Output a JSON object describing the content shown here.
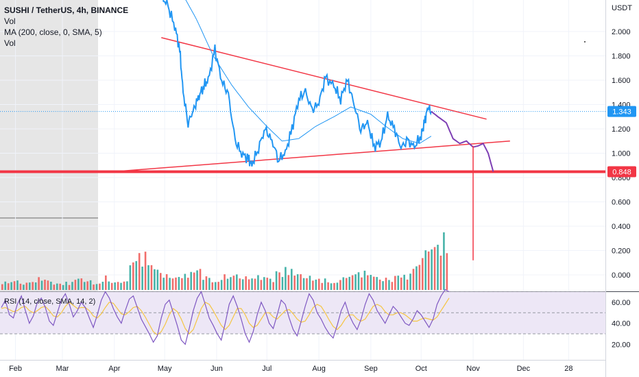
{
  "legend": {
    "symbol": "SUSHI / TetherUS, 4h, BINANCE",
    "vol1": "Vol",
    "ma": "MA (200, close, 0, SMA, 5)",
    "vol2": "Vol",
    "rsi": "RSI (14, close, SMA, 14, 2)"
  },
  "colors": {
    "price": "#2196f3",
    "ma": "#2196f3",
    "trendline": "#f23645",
    "support": "#f23645",
    "projection": "#7e3fb4",
    "rsi": "#7e57c2",
    "rsi_ma": "#f5c542",
    "rsi_band": "#ede7f6",
    "vol_up": "#26a69a",
    "vol_down": "#ef5350",
    "badge_blue": "#2196f3",
    "badge_red": "#f23645"
  },
  "chart_data": [
    {
      "type": "line",
      "title": "SUSHI / TetherUS, 4h, BINANCE",
      "unit": "USDT",
      "x_labels": [
        "Feb",
        "Mar",
        "Apr",
        "May",
        "Jun",
        "Jul",
        "Aug",
        "Sep",
        "Oct",
        "Nov",
        "Dec",
        "28"
      ],
      "y_ticks": [
        "2.000",
        "1.800",
        "1.600",
        "1.400",
        "1.200",
        "1.000",
        "0.800",
        "0.600",
        "0.400",
        "0.200",
        "0.000"
      ],
      "ylim": [
        -0.05,
        2.3
      ],
      "current_price": "1.343",
      "support_level": "0.848",
      "series": [
        {
          "x": [
            "2021-04-29",
            "2021-05-03",
            "2021-05-07",
            "2021-05-10",
            "2021-05-12",
            "2021-05-15",
            "2021-05-18",
            "2021-05-21",
            "2021-05-24",
            "2021-05-27",
            "2021-05-31",
            "2021-06-04",
            "2021-06-08",
            "2021-06-12",
            "2021-06-16",
            "2021-06-20",
            "2021-06-22",
            "2021-06-26",
            "2021-06-30",
            "2021-07-04",
            "2021-07-08",
            "2021-07-12",
            "2021-07-16",
            "2021-07-20",
            "2021-07-24",
            "2021-07-28",
            "2021-08-01",
            "2021-08-05",
            "2021-08-10",
            "2021-08-14",
            "2021-08-18",
            "2021-08-22",
            "2021-08-26",
            "2021-08-30",
            "2021-09-03",
            "2021-09-07",
            "2021-09-11",
            "2021-09-15",
            "2021-09-19",
            "2021-09-23",
            "2021-09-27",
            "2021-10-01",
            "2021-10-03",
            "2021-10-05",
            "2021-10-07"
          ],
          "y": [
            2.3,
            2.2,
            2.05,
            1.85,
            1.5,
            1.25,
            1.35,
            1.45,
            1.55,
            1.6,
            1.85,
            1.6,
            1.48,
            1.1,
            1.0,
            0.95,
            0.9,
            1.05,
            1.2,
            1.1,
            0.95,
            1.0,
            1.2,
            1.45,
            1.5,
            1.35,
            1.42,
            1.62,
            1.55,
            1.45,
            1.6,
            1.4,
            1.2,
            1.25,
            1.05,
            1.1,
            1.3,
            1.2,
            1.05,
            1.1,
            1.05,
            1.15,
            1.25,
            1.38,
            1.343
          ]
        },
        {
          "name": "MA (200, close, 0, SMA, 5)",
          "x": [
            "2021-05-12",
            "2021-05-20",
            "2021-05-30",
            "2021-06-10",
            "2021-06-20",
            "2021-07-01",
            "2021-07-10",
            "2021-07-20",
            "2021-07-30",
            "2021-08-10",
            "2021-08-20",
            "2021-09-01",
            "2021-09-10",
            "2021-09-20",
            "2021-09-30",
            "2021-10-07"
          ],
          "y": [
            2.3,
            2.1,
            1.8,
            1.56,
            1.38,
            1.22,
            1.1,
            1.12,
            1.22,
            1.3,
            1.38,
            1.32,
            1.22,
            1.12,
            1.08,
            1.14
          ]
        }
      ],
      "trendlines": [
        {
          "from": [
            "2021-04-29",
            1.95
          ],
          "to": [
            "2021-11-09",
            1.28
          ]
        },
        {
          "from": [
            "2021-04-02",
            0.85
          ],
          "to": [
            "2021-11-23",
            1.1
          ]
        }
      ],
      "projection": {
        "x": [
          "2021-10-07",
          "2021-10-11",
          "2021-10-16",
          "2021-10-20",
          "2021-10-24",
          "2021-10-28",
          "2021-11-01",
          "2021-11-04",
          "2021-11-07",
          "2021-11-10",
          "2021-11-13"
        ],
        "y": [
          1.343,
          1.3,
          1.25,
          1.12,
          1.08,
          1.1,
          1.05,
          1.06,
          1.08,
          1.0,
          0.848
        ]
      },
      "target_line": {
        "x": "2021-11-01",
        "from": 1.06,
        "to": 0.12
      }
    },
    {
      "type": "bar",
      "title": "Vol",
      "note": "volume histogram, unscaled relative heights",
      "values": [
        12,
        14,
        10,
        11,
        18,
        13,
        9,
        12,
        16,
        14,
        11,
        20,
        15,
        13,
        40,
        55,
        35,
        28,
        22,
        18,
        25,
        30,
        20,
        18,
        22,
        24,
        19,
        16,
        21,
        17,
        26,
        33,
        22,
        20,
        18,
        16,
        15,
        19,
        22,
        27,
        21,
        18,
        17,
        20,
        23,
        35,
        60,
        90,
        80
      ],
      "directions": [
        1,
        0,
        1,
        0,
        1,
        1,
        0,
        0,
        1,
        0,
        1,
        0,
        1,
        0,
        0,
        1,
        0,
        0,
        1,
        1,
        0,
        1,
        0,
        1,
        0,
        0,
        1,
        1,
        0,
        1,
        0,
        0,
        1,
        0,
        1,
        1,
        0,
        1,
        0,
        0,
        1,
        0,
        1,
        1,
        0,
        1,
        1,
        0,
        1
      ]
    },
    {
      "type": "line",
      "title": "RSI (14, close, SMA, 14, 2)",
      "y_ticks": [
        "60.00",
        "40.00",
        "20.00"
      ],
      "ylim": [
        15,
        80
      ],
      "band": [
        30,
        70
      ],
      "midline": 50,
      "series": [
        {
          "values": [
            55,
            62,
            48,
            45,
            58,
            66,
            52,
            40,
            47,
            60,
            64,
            55,
            42,
            38,
            50,
            62,
            68,
            58,
            46,
            52,
            60,
            55,
            45,
            36,
            48,
            62,
            70,
            64,
            54,
            46,
            40,
            52,
            63,
            66,
            55,
            44,
            37,
            30,
            22,
            28,
            45,
            58,
            62,
            50,
            38,
            24,
            20,
            35,
            52,
            64,
            70,
            58,
            45,
            38,
            30,
            24,
            40,
            58,
            66,
            56,
            44,
            30,
            22,
            32,
            48,
            60,
            52,
            40,
            35,
            48,
            62,
            58,
            45,
            34,
            28,
            42,
            56,
            68,
            62,
            50,
            44,
            36,
            30,
            26,
            38,
            52,
            60,
            48,
            40,
            34,
            44,
            58,
            68,
            62,
            52,
            46,
            40,
            48,
            56,
            52,
            46,
            40,
            38,
            44,
            52,
            48,
            42,
            36,
            44,
            58,
            66,
            72,
            70
          ]
        },
        {
          "name": "SMA",
          "values": [
            54,
            55,
            53,
            51,
            52,
            55,
            56,
            52,
            50,
            52,
            55,
            56,
            52,
            47,
            46,
            50,
            56,
            60,
            57,
            54,
            55,
            55,
            52,
            47,
            45,
            49,
            55,
            60,
            59,
            54,
            49,
            48,
            51,
            55,
            56,
            52,
            46,
            39,
            32,
            29,
            32,
            39,
            48,
            54,
            51,
            44,
            35,
            30,
            34,
            44,
            54,
            60,
            58,
            52,
            45,
            38,
            34,
            38,
            46,
            54,
            54,
            48,
            40,
            36,
            38,
            44,
            50,
            50,
            46,
            44,
            48,
            52,
            53,
            49,
            44,
            41,
            42,
            48,
            55,
            58,
            56,
            50,
            43,
            37,
            34,
            38,
            44,
            48,
            48,
            44,
            42,
            44,
            50,
            56,
            58,
            56,
            51,
            48,
            48,
            50,
            50,
            48,
            45,
            42,
            42,
            44,
            45,
            44,
            43,
            46,
            52,
            58,
            64
          ]
        }
      ]
    }
  ]
}
